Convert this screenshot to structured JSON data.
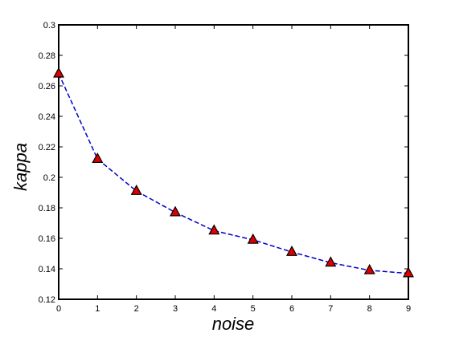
{
  "chart_data": {
    "type": "line",
    "xlabel": "noise",
    "ylabel": "kappa",
    "xlim": [
      0,
      9
    ],
    "ylim": [
      0.12,
      0.3
    ],
    "x_ticks": [
      0,
      1,
      2,
      3,
      4,
      5,
      6,
      7,
      8,
      9
    ],
    "x_tick_labels": [
      "0",
      "1",
      "2",
      "3",
      "4",
      "5",
      "6",
      "7",
      "8",
      "9"
    ],
    "y_ticks": [
      0.12,
      0.14,
      0.16,
      0.18,
      0.2,
      0.22,
      0.24,
      0.26,
      0.28,
      0.3
    ],
    "y_tick_labels": [
      "0.12",
      "0.14",
      "0.16",
      "0.18",
      "0.2",
      "0.22",
      "0.24",
      "0.26",
      "0.28",
      "0.3"
    ],
    "grid": false,
    "series": [
      {
        "x": [
          0,
          1,
          2,
          3,
          4,
          5,
          6,
          7,
          8,
          9
        ],
        "y": [
          0.268,
          0.212,
          0.191,
          0.177,
          0.165,
          0.159,
          0.151,
          0.144,
          0.139,
          0.137
        ],
        "line_color": "#0000cc",
        "line_style": "dashed",
        "marker": "triangle",
        "marker_color": "#dd0000",
        "marker_edge_color": "#000000"
      }
    ]
  }
}
